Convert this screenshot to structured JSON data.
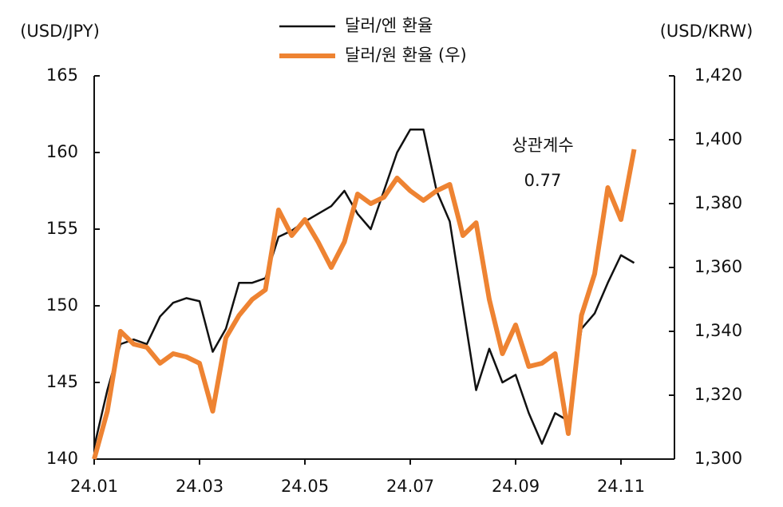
{
  "chart_data": {
    "type": "line",
    "y_label": "(USD/JPY)",
    "y2_label": "(USD/KRW)",
    "annotation": "상관계수",
    "annotation_value": "0.77",
    "categories": [
      "24.01",
      null,
      null,
      null,
      null,
      null,
      null,
      null,
      "24.03",
      null,
      null,
      null,
      null,
      null,
      null,
      null,
      "24.05",
      null,
      null,
      null,
      null,
      null,
      null,
      null,
      "24.07",
      null,
      null,
      null,
      null,
      null,
      null,
      null,
      "24.09",
      null,
      null,
      null,
      null,
      null,
      null,
      null,
      "24.11",
      null
    ],
    "series": [
      {
        "name": "달러/엔 환율",
        "color": "#111111",
        "values": [
          140.8,
          144.5,
          147.5,
          147.8,
          147.5,
          149.3,
          150.2,
          150.5,
          150.3,
          147.0,
          148.5,
          151.5,
          151.5,
          151.8,
          154.5,
          154.9,
          155.5,
          156.0,
          156.5,
          157.5,
          156.0,
          155.0,
          157.5,
          160.0,
          161.5,
          161.5,
          157.5,
          155.5,
          150.0,
          144.5,
          147.2,
          145.0,
          145.5,
          143.0,
          141.0,
          143.0,
          142.5,
          148.5,
          149.5,
          151.5,
          153.3,
          152.8
        ]
      },
      {
        "name": "달러/원 환율 (우)",
        "color": "#ee8332",
        "axis": "y2",
        "values": [
          1300,
          1315,
          1340,
          1336,
          1335,
          1330,
          1333,
          1332,
          1330,
          1315,
          1338,
          1345,
          1350,
          1353,
          1378,
          1370,
          1375,
          1368,
          1360,
          1368,
          1383,
          1380,
          1382,
          1388,
          1384,
          1381,
          1384,
          1386,
          1370,
          1374,
          1350,
          1333,
          1342,
          1329,
          1330,
          1333,
          1308,
          1345,
          1358,
          1385,
          1375,
          1397
        ]
      }
    ],
    "ylim": [
      140,
      165
    ],
    "yticks": [
      140,
      145,
      150,
      155,
      160,
      165
    ],
    "y2lim": [
      1300,
      1420
    ],
    "y2ticks": [
      {
        "value": 1300,
        "label": "1,300"
      },
      {
        "value": 1320,
        "label": "1,320"
      },
      {
        "value": 1340,
        "label": "1,340"
      },
      {
        "value": 1360,
        "label": "1,360"
      },
      {
        "value": 1380,
        "label": "1,380"
      },
      {
        "value": 1400,
        "label": "1,400"
      },
      {
        "value": 1420,
        "label": "1,420"
      }
    ],
    "grid": false
  }
}
